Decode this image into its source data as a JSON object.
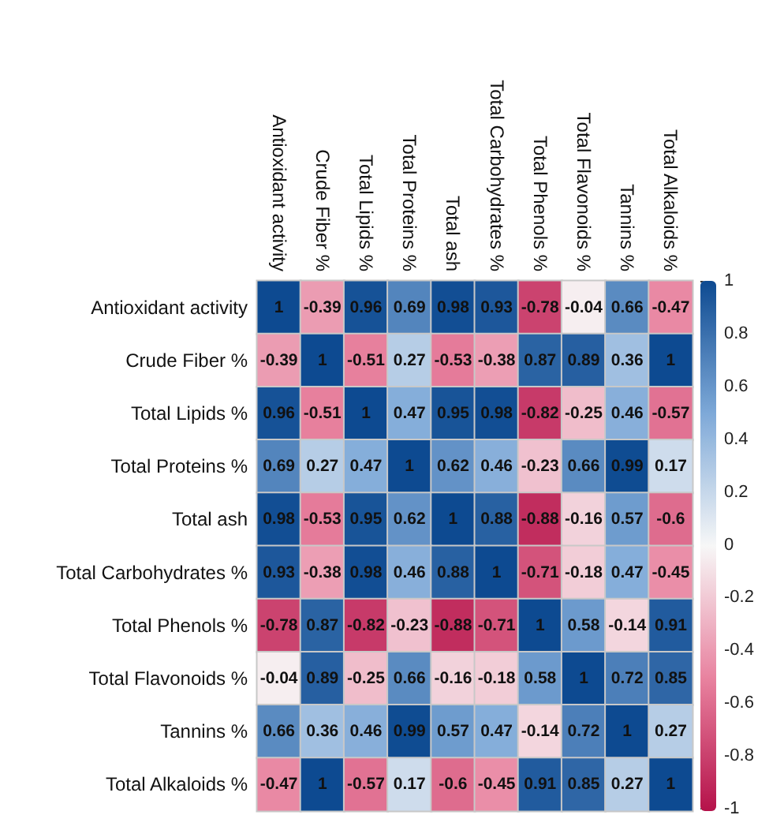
{
  "chart_data": {
    "type": "heatmap",
    "categories": [
      "Antioxidant activity",
      "Crude Fiber %",
      "Total Lipids %",
      "Total Proteins %",
      "Total ash",
      "Total Carbohydrates %",
      "Total Phenols %",
      "Total Flavonoids %",
      "Tannins %",
      "Total Alkaloids %"
    ],
    "y_categories": [
      "Antioxidant activity",
      "Crude Fiber %",
      "Total Lipids %",
      "Total Proteins %",
      "Total ash",
      "Total Carbohydrates %",
      "Total Phenols %",
      "Total Flavonoids %",
      "Tannins %",
      "Total Alkaloids %"
    ],
    "cells": [
      [
        1,
        -0.39,
        0.96,
        0.69,
        0.98,
        0.93,
        -0.78,
        -0.04,
        0.66,
        -0.47
      ],
      [
        -0.39,
        1,
        -0.51,
        0.27,
        -0.53,
        -0.38,
        0.87,
        0.89,
        0.36,
        1
      ],
      [
        0.96,
        -0.51,
        1,
        0.47,
        0.95,
        0.98,
        -0.82,
        -0.25,
        0.46,
        -0.57
      ],
      [
        0.69,
        0.27,
        0.47,
        1,
        0.62,
        0.46,
        -0.23,
        0.66,
        0.99,
        0.17
      ],
      [
        0.98,
        -0.53,
        0.95,
        0.62,
        1,
        0.88,
        -0.88,
        -0.16,
        0.57,
        -0.6
      ],
      [
        0.93,
        -0.38,
        0.98,
        0.46,
        0.88,
        1,
        -0.71,
        -0.18,
        0.47,
        -0.45
      ],
      [
        -0.78,
        0.87,
        -0.82,
        -0.23,
        -0.88,
        -0.71,
        1,
        0.58,
        -0.14,
        0.91
      ],
      [
        -0.04,
        0.89,
        -0.25,
        0.66,
        -0.16,
        -0.18,
        0.58,
        1,
        0.72,
        0.85
      ],
      [
        0.66,
        0.36,
        0.46,
        0.99,
        0.57,
        0.47,
        -0.14,
        0.72,
        1,
        0.27
      ],
      [
        -0.47,
        1,
        -0.57,
        0.17,
        -0.6,
        -0.45,
        0.91,
        0.85,
        0.27,
        1
      ]
    ],
    "clim": [
      -1,
      1
    ],
    "cticks": [
      -1,
      -0.8,
      -0.6,
      -0.4,
      -0.2,
      0,
      0.2,
      0.4,
      0.6,
      0.8,
      1
    ],
    "data_labels": true
  }
}
